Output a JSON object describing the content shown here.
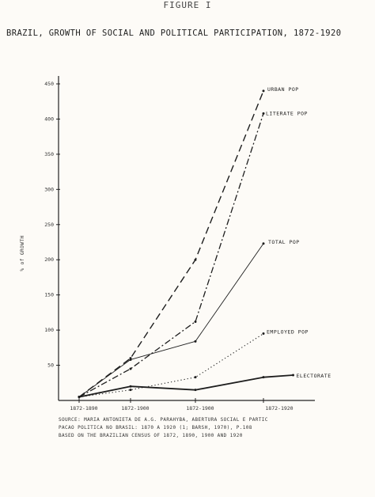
{
  "figure_label": "FIGURE I",
  "chart_data": {
    "type": "line",
    "title": "BRAZIL, GROWTH OF SOCIAL AND POLITICAL PARTICIPATION, 1872-1920",
    "ylabel": "% of GROWTH",
    "xlabel": "",
    "ylim": [
      0,
      450
    ],
    "y_ticks": [
      50,
      100,
      150,
      200,
      250,
      300,
      350,
      400,
      450
    ],
    "y_tick_labels": [
      "50",
      "100",
      "150",
      "200",
      "250",
      "300",
      "350",
      "400",
      "450"
    ],
    "categories": [
      "1872-1890",
      "1872-1900",
      "1872-1900",
      "1872-1920"
    ],
    "x_tick_labels": [
      "1872-1890",
      "1872-1900",
      "1872-1900",
      "1872-1920"
    ],
    "grid": false,
    "series": [
      {
        "name": "URBAN POP",
        "style": "dashed",
        "x": [
          0,
          1,
          2,
          3
        ],
        "values": [
          5,
          60,
          200,
          440
        ]
      },
      {
        "name": "LITERATE POP",
        "style": "dashdot",
        "x": [
          0,
          1,
          2,
          3
        ],
        "values": [
          5,
          45,
          112,
          408
        ]
      },
      {
        "name": "TOTAL POP",
        "style": "solid",
        "x": [
          0,
          1,
          2,
          3
        ],
        "values": [
          5,
          58,
          84,
          223
        ]
      },
      {
        "name": "EMPLOYED POP",
        "style": "dotted",
        "x": [
          0,
          1,
          2,
          3
        ],
        "values": [
          5,
          15,
          33,
          95
        ]
      },
      {
        "name": "ELECTORATE",
        "style": "solid-bold",
        "x": [
          0,
          1,
          2,
          3,
          3.5
        ],
        "values": [
          5,
          20,
          15,
          33,
          36
        ]
      }
    ]
  },
  "source_lines": [
    "SOURCE:  MARIA ANTONIETA DE A.G. PARAHYBA, ABERTURA SOCIAL E PARTIC",
    "PACAO POLITICA NO BRASIL: 1870 A 1920 (1; BARSH, 1970), P.108",
    "BASED ON THE BRAZILIAN CENSUS OF 1872, 1890, 1900 AND 1920"
  ]
}
